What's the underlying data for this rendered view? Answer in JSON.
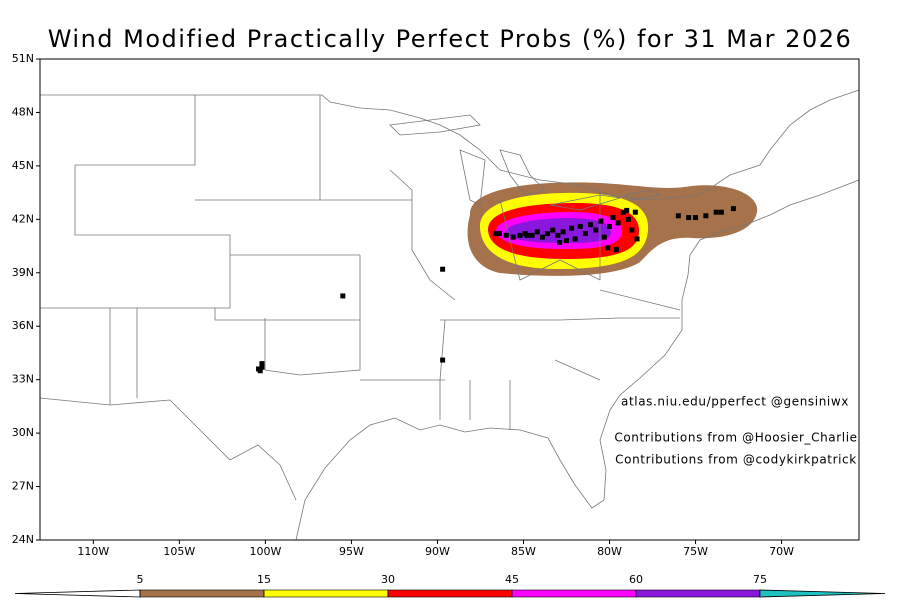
{
  "title": "Wind Modified Practically Perfect Probs (%) for 31 Mar 2026",
  "map": {
    "lon_range": [
      -113.1,
      -65.5
    ],
    "lat_range": [
      24,
      51
    ],
    "lat_ticks": [
      {
        "value": 51,
        "label": "51N"
      },
      {
        "value": 48,
        "label": "48N"
      },
      {
        "value": 45,
        "label": "45N"
      },
      {
        "value": 42,
        "label": "42N"
      },
      {
        "value": 39,
        "label": "39N"
      },
      {
        "value": 36,
        "label": "36N"
      },
      {
        "value": 33,
        "label": "33N"
      },
      {
        "value": 30,
        "label": "30N"
      },
      {
        "value": 27,
        "label": "27N"
      },
      {
        "value": 24,
        "label": "24N"
      }
    ],
    "lon_ticks": [
      {
        "value": -110,
        "label": "110W"
      },
      {
        "value": -105,
        "label": "105W"
      },
      {
        "value": -100,
        "label": "100W"
      },
      {
        "value": -95,
        "label": "95W"
      },
      {
        "value": -90,
        "label": "90W"
      },
      {
        "value": -85,
        "label": "85W"
      },
      {
        "value": -80,
        "label": "80W"
      },
      {
        "value": -75,
        "label": "75W"
      },
      {
        "value": -70,
        "label": "70W"
      }
    ]
  },
  "reports": [
    [
      -89.7,
      39.2
    ],
    [
      -95.5,
      37.7
    ],
    [
      -100.2,
      33.7
    ],
    [
      -100.4,
      33.6
    ],
    [
      -100.2,
      33.9
    ],
    [
      -100.3,
      33.5
    ],
    [
      -89.7,
      34.1
    ],
    [
      -76.0,
      42.2
    ],
    [
      -75.4,
      42.1
    ],
    [
      -75.0,
      42.1
    ],
    [
      -74.4,
      42.2
    ],
    [
      -73.8,
      42.4
    ],
    [
      -73.5,
      42.4
    ],
    [
      -72.8,
      42.6
    ],
    [
      -86.6,
      41.2
    ],
    [
      -86.4,
      41.2
    ],
    [
      -86.0,
      41.1
    ],
    [
      -85.6,
      41.0
    ],
    [
      -85.2,
      41.1
    ],
    [
      -84.9,
      41.2
    ],
    [
      -84.8,
      41.1
    ],
    [
      -84.5,
      41.1
    ],
    [
      -84.2,
      41.3
    ],
    [
      -83.9,
      41.0
    ],
    [
      -83.6,
      41.2
    ],
    [
      -83.3,
      41.4
    ],
    [
      -83.0,
      41.1
    ],
    [
      -82.9,
      40.7
    ],
    [
      -82.7,
      41.3
    ],
    [
      -82.5,
      40.8
    ],
    [
      -82.2,
      41.5
    ],
    [
      -82.0,
      40.9
    ],
    [
      -81.7,
      41.6
    ],
    [
      -81.4,
      41.2
    ],
    [
      -81.1,
      41.7
    ],
    [
      -80.8,
      41.4
    ],
    [
      -80.5,
      41.9
    ],
    [
      -80.3,
      41.0
    ],
    [
      -80.1,
      40.4
    ],
    [
      -80.0,
      41.6
    ],
    [
      -79.8,
      42.1
    ],
    [
      -79.6,
      40.3
    ],
    [
      -79.5,
      41.8
    ],
    [
      -79.2,
      42.4
    ],
    [
      -79.0,
      42.5
    ],
    [
      -78.9,
      42.0
    ],
    [
      -78.7,
      41.4
    ],
    [
      -78.5,
      42.4
    ],
    [
      -78.4,
      40.9
    ]
  ],
  "annotations": [
    "atlas.niu.edu/pperfect @gensiniwx",
    "Contributions from @Hoosier_Charlie",
    "Contributions from @codykirkpatrick"
  ],
  "colorbar": {
    "levels": [
      5,
      15,
      30,
      45,
      60,
      75
    ],
    "colors": [
      "#a5724b",
      "#ffff00",
      "#ff0000",
      "#ff00ff",
      "#8a18dc",
      "#20c0c0"
    ],
    "under_color": "#ffffff"
  }
}
